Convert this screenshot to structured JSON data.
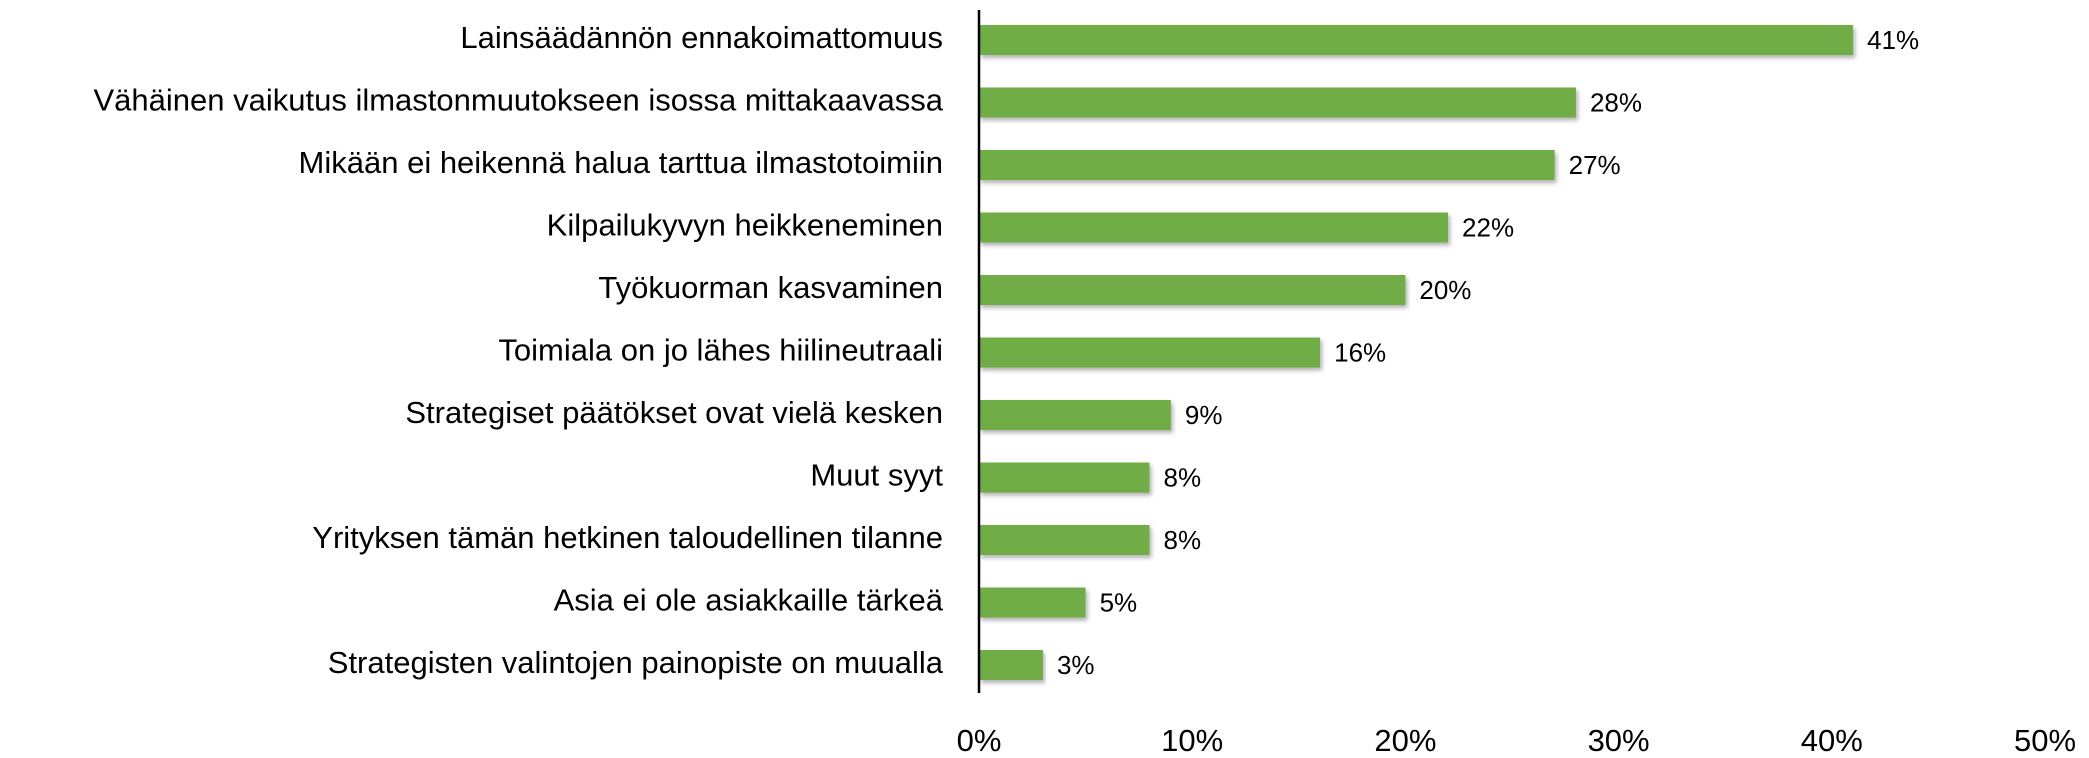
{
  "chart_data": {
    "type": "bar",
    "orientation": "horizontal",
    "categories": [
      "Lainsäädännön ennakoimattomuus",
      "Vähäinen vaikutus ilmastonmuutokseen isossa mittakaavassa",
      "Mikään ei heikennä halua tarttua ilmastotoimiin",
      "Kilpailukyvyn heikkeneminen",
      "Työkuorman kasvaminen",
      "Toimiala on jo lähes hiilineutraali",
      "Strategiset päätökset ovat vielä kesken",
      "Muut syyt",
      "Yrityksen tämän hetkinen taloudellinen tilanne",
      "Asia ei ole asiakkaille tärkeä",
      "Strategisten valintojen painopiste on muualla"
    ],
    "values": [
      41,
      28,
      27,
      22,
      20,
      16,
      9,
      8,
      8,
      5,
      3
    ],
    "value_labels": [
      "41%",
      "28%",
      "27%",
      "22%",
      "20%",
      "16%",
      "9%",
      "8%",
      "8%",
      "5%",
      "3%"
    ],
    "color": "#70ad47",
    "xlim": [
      0,
      50
    ],
    "xticks": [
      {
        "value": 0,
        "label": "0%"
      },
      {
        "value": 10,
        "label": "10%"
      },
      {
        "value": 20,
        "label": "20%"
      },
      {
        "value": 30,
        "label": "30%"
      },
      {
        "value": 40,
        "label": "40%"
      },
      {
        "value": 50,
        "label": "50%"
      }
    ],
    "grid": false
  }
}
